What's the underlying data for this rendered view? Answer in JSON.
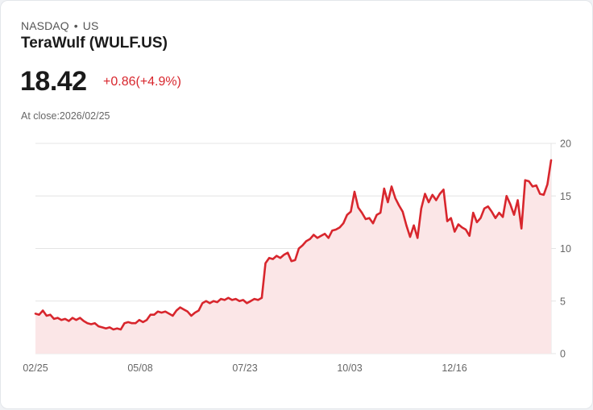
{
  "header": {
    "exchange": "NASDAQ",
    "separator": "•",
    "region": "US",
    "name": "TeraWulf (WULF.US)",
    "price": "18.42",
    "change": "+0.86(+4.9%)",
    "close_label": "At close:2026/02/25"
  },
  "colors": {
    "line": "#d8262d",
    "fill": "#fbe6e7",
    "grid": "#e4e4e4",
    "change": "#d8262d"
  },
  "chart_data": {
    "type": "area",
    "title": "TeraWulf (WULF.US)",
    "xlabel": "",
    "ylabel": "",
    "ylim": [
      0,
      20
    ],
    "yticks": [
      0,
      5,
      10,
      15,
      20
    ],
    "xtick_labels": [
      "02/25",
      "05/08",
      "07/23",
      "10/03",
      "12/16"
    ],
    "grid": true,
    "y_axis_position": "right",
    "values": [
      3.8,
      3.7,
      4.1,
      3.6,
      3.7,
      3.3,
      3.4,
      3.2,
      3.3,
      3.1,
      3.4,
      3.2,
      3.4,
      3.1,
      2.9,
      2.8,
      2.9,
      2.6,
      2.5,
      2.4,
      2.5,
      2.3,
      2.4,
      2.3,
      2.9,
      3.0,
      2.9,
      2.9,
      3.2,
      3.0,
      3.2,
      3.7,
      3.7,
      4.0,
      3.9,
      4.0,
      3.8,
      3.6,
      4.1,
      4.4,
      4.2,
      4.0,
      3.6,
      3.9,
      4.1,
      4.8,
      5.0,
      4.8,
      5.0,
      4.9,
      5.2,
      5.1,
      5.3,
      5.1,
      5.2,
      5.0,
      5.1,
      4.8,
      5.0,
      5.2,
      5.1,
      5.3,
      8.6,
      9.1,
      9.0,
      9.3,
      9.1,
      9.4,
      9.6,
      8.8,
      8.9,
      10.0,
      10.3,
      10.7,
      10.9,
      11.3,
      11.0,
      11.2,
      11.4,
      11.0,
      11.7,
      11.8,
      12.0,
      12.4,
      13.2,
      13.5,
      15.4,
      13.9,
      13.4,
      12.8,
      12.9,
      12.4,
      13.2,
      13.4,
      15.7,
      14.4,
      15.9,
      14.8,
      14.1,
      13.5,
      12.2,
      11.1,
      12.2,
      11.0,
      13.8,
      15.2,
      14.4,
      15.1,
      14.6,
      15.2,
      15.6,
      12.6,
      12.9,
      11.6,
      12.3,
      12.0,
      11.8,
      11.2,
      13.4,
      12.5,
      12.9,
      13.8,
      14.0,
      13.5,
      12.9,
      13.4,
      13.0,
      15.0,
      14.2,
      13.2,
      14.6,
      11.9,
      16.5,
      16.4,
      15.9,
      16.0,
      15.2,
      15.1,
      16.1,
      18.4
    ]
  }
}
